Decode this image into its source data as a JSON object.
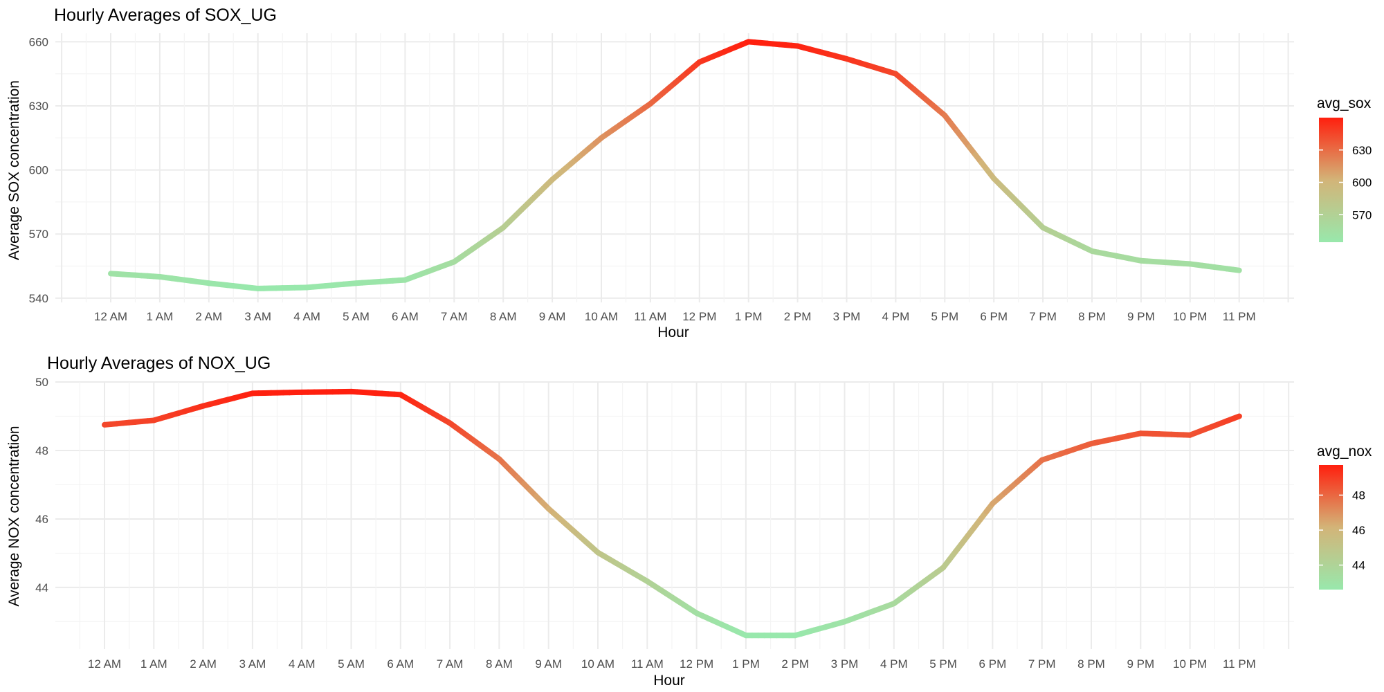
{
  "chart_data": [
    {
      "type": "line",
      "title": "Hourly Averages of SOX_UG",
      "xlabel": "Hour",
      "ylabel": "Average SOX concentration",
      "categories": [
        "12 AM",
        "1 AM",
        "2 AM",
        "3 AM",
        "4 AM",
        "5 AM",
        "6 AM",
        "7 AM",
        "8 AM",
        "9 AM",
        "10 AM",
        "11 AM",
        "12 PM",
        "1 PM",
        "2 PM",
        "3 PM",
        "4 PM",
        "5 PM",
        "6 PM",
        "7 PM",
        "8 PM",
        "9 PM",
        "10 PM",
        "11 PM"
      ],
      "values": [
        551.5,
        550,
        547,
        544.5,
        545,
        547,
        548.5,
        557,
        573,
        595.5,
        615,
        631,
        650.5,
        660,
        658,
        652,
        645,
        625.5,
        596,
        573,
        562,
        557.5,
        556,
        553
      ],
      "ylim": [
        538,
        664
      ],
      "yticks": [
        540,
        570,
        600,
        630,
        660
      ],
      "grid": true,
      "legend": {
        "title": "avg_sox",
        "placement": "right",
        "ticks": [
          570,
          600,
          630
        ],
        "range": [
          544.5,
          660
        ]
      },
      "colors": {
        "low": "#98e8ac",
        "mid": "#d3b478",
        "high": "#ff1f0e"
      }
    },
    {
      "type": "line",
      "title": "Hourly Averages of NOX_UG",
      "xlabel": "Hour",
      "ylabel": "Average NOX concentration",
      "categories": [
        "12 AM",
        "1 AM",
        "2 AM",
        "3 AM",
        "4 AM",
        "5 AM",
        "6 AM",
        "7 AM",
        "8 AM",
        "9 AM",
        "10 AM",
        "11 AM",
        "12 PM",
        "1 PM",
        "2 PM",
        "3 PM",
        "4 PM",
        "5 PM",
        "6 PM",
        "7 PM",
        "8 PM",
        "9 PM",
        "10 PM",
        "11 PM"
      ],
      "values": [
        48.75,
        48.88,
        49.3,
        49.67,
        49.7,
        49.72,
        49.63,
        48.8,
        47.75,
        46.3,
        45.02,
        44.18,
        43.25,
        42.6,
        42.6,
        43.0,
        43.53,
        44.58,
        46.45,
        47.72,
        48.2,
        48.5,
        48.45,
        49.0
      ],
      "ylim": [
        42.2,
        50.0
      ],
      "yticks": [
        44,
        46,
        48,
        50
      ],
      "grid": true,
      "legend": {
        "title": "avg_nox",
        "placement": "right",
        "ticks": [
          44,
          46,
          48
        ],
        "range": [
          42.6,
          49.72
        ]
      },
      "colors": {
        "low": "#98e8ac",
        "mid": "#d3b478",
        "high": "#ff1f0e"
      }
    }
  ]
}
